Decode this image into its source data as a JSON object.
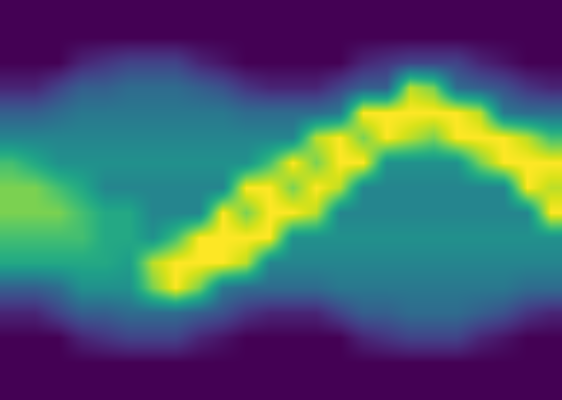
{
  "chart_data": {
    "type": "heatmap",
    "color": "Viridis",
    "tick_labels": false,
    "zlim": [
      0,
      10
    ],
    "cells": [
      [
        0,
        0,
        0,
        0,
        0,
        0,
        0,
        0,
        0,
        0,
        0,
        0,
        0,
        0,
        0,
        0,
        0,
        0,
        0,
        0,
        0,
        0,
        0,
        0
      ],
      [
        0,
        0,
        0,
        0,
        0,
        0,
        0,
        0,
        0,
        0,
        0,
        0,
        0,
        0,
        0,
        0,
        0,
        0,
        0,
        0,
        0,
        0,
        0,
        0
      ],
      [
        0,
        0,
        0,
        1,
        1.5,
        2,
        2,
        2,
        1,
        0.5,
        0,
        0,
        0,
        0,
        0,
        1,
        1.5,
        2,
        2,
        2,
        1,
        0.5,
        0,
        0
      ],
      [
        1,
        1,
        2,
        3,
        3,
        3.5,
        3.5,
        3.5,
        3,
        2.5,
        1.5,
        1,
        1,
        1,
        2,
        3,
        3,
        9,
        8,
        3.5,
        3,
        2.5,
        1.5,
        1
      ],
      [
        3,
        3,
        3.5,
        4,
        4,
        4,
        4,
        4,
        4,
        4,
        3.5,
        3.5,
        3.5,
        3.5,
        4,
        10,
        10,
        10,
        10,
        10,
        9,
        4,
        3.5,
        3.5
      ],
      [
        4.5,
        4.5,
        4.5,
        4.5,
        4.5,
        4.5,
        4.5,
        4.5,
        4.5,
        4.5,
        4.5,
        4.5,
        4.5,
        9,
        10,
        8,
        10,
        9,
        8,
        10,
        10,
        10,
        9,
        7
      ],
      [
        7,
        6,
        5,
        5,
        5,
        5,
        5,
        5,
        5,
        5,
        5,
        7,
        10,
        8,
        10,
        10,
        5,
        5,
        5,
        5,
        8,
        10,
        10,
        10
      ],
      [
        8,
        8,
        7,
        6,
        4.5,
        4.5,
        4.5,
        4.5,
        4.5,
        4.5,
        10,
        10,
        8,
        10,
        9,
        4.5,
        4.5,
        4.5,
        4.5,
        4.5,
        4.5,
        4.5,
        10,
        9
      ],
      [
        8,
        8,
        8,
        7,
        6,
        6,
        4.5,
        4.5,
        4.5,
        10,
        8,
        10,
        10,
        9,
        4.5,
        4.5,
        4.5,
        4.5,
        4.5,
        4.5,
        4.5,
        4.5,
        4.5,
        10
      ],
      [
        7,
        7,
        7,
        7,
        6,
        6,
        5,
        7,
        10,
        10,
        10,
        10,
        5,
        5,
        5,
        5,
        5,
        5,
        5,
        5,
        5,
        5,
        5,
        5
      ],
      [
        6,
        6,
        6,
        6,
        6,
        5.5,
        9,
        10,
        10,
        10,
        9,
        4.5,
        4.5,
        4.5,
        4.5,
        4.5,
        4.5,
        4.5,
        4.5,
        4.5,
        4.5,
        4.5,
        4.5,
        4.5
      ],
      [
        3,
        3,
        3.5,
        5,
        5,
        5,
        8,
        10,
        8,
        4,
        3.5,
        3.5,
        3.5,
        3.5,
        4,
        4,
        4,
        4,
        4,
        4,
        4,
        4,
        3.5,
        3.5
      ],
      [
        1,
        1,
        2,
        3,
        3,
        3.5,
        3.5,
        3.5,
        3,
        2.5,
        1.5,
        1,
        1,
        1,
        2,
        3,
        3,
        3.5,
        3.5,
        3.5,
        3,
        2.5,
        1.5,
        1
      ],
      [
        0,
        0,
        0,
        1,
        1.5,
        2,
        2,
        2,
        1,
        0.5,
        0,
        0,
        0,
        0,
        0,
        1,
        1.5,
        2,
        2,
        2,
        1,
        0.5,
        0,
        0
      ],
      [
        0,
        0,
        0,
        0,
        0,
        0,
        0,
        0,
        0,
        0,
        0,
        0,
        0,
        0,
        0,
        0,
        0,
        0,
        0,
        0,
        0,
        0,
        0,
        0
      ],
      [
        0,
        0,
        0,
        0,
        0,
        0,
        0,
        0,
        0,
        0,
        0,
        0,
        0,
        0,
        0,
        0,
        0,
        0,
        0,
        0,
        0,
        0,
        0,
        0
      ]
    ]
  }
}
